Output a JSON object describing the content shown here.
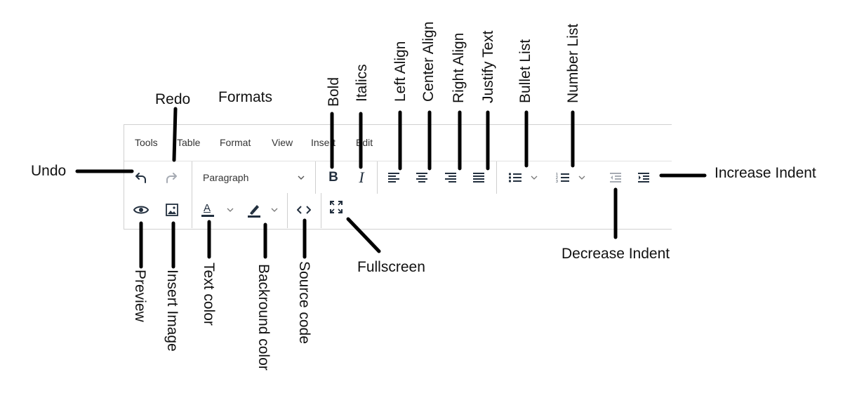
{
  "menubar": {
    "items": [
      "Tools",
      "Table",
      "Format",
      "View",
      "Insert",
      "Edit"
    ]
  },
  "toolbar": {
    "format_select_value": "Paragraph",
    "bold_glyph": "B",
    "italic_glyph": "I",
    "text_color_glyph": "A"
  },
  "labels": {
    "undo": "Undo",
    "redo": "Redo",
    "formats": "Formats",
    "bold": "Bold",
    "italics": "Italics",
    "left_align": "Left Align",
    "center_align": "Center Align",
    "right_align": "Right Align",
    "justify_text": "Justify Text",
    "bullet_list": "Bullet List",
    "number_list": "Number List",
    "increase_indent": "Increase Indent",
    "decrease_indent": "Decrease Indent",
    "preview": "Preview",
    "insert_image": "Insert Image",
    "text_color": "Text color",
    "background_color": "Backround color",
    "source_code": "Source code",
    "fullscreen": "Fullscreen"
  },
  "colors": {
    "icon": "#222f3e",
    "disabled_icon": "#a6abb3",
    "callout_line": "#000000",
    "border": "#d0d0d0"
  }
}
